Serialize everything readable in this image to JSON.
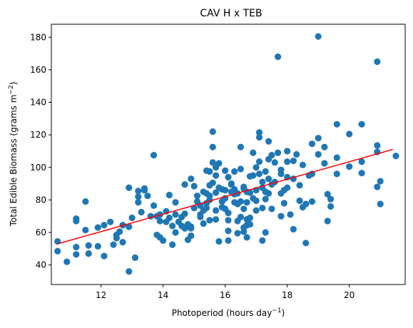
{
  "chart_data": {
    "type": "scatter",
    "title": "CAV H x TEB",
    "xlabel": "Photoperiod (hours day",
    "xlabel_sup": "−1",
    "xlabel_suffix": ")",
    "ylabel": "Total Edible Biomass (grams m",
    "ylabel_sup": "−2",
    "ylabel_suffix": ")",
    "xlim": [
      10.4,
      21.8
    ],
    "ylim": [
      28,
      188
    ],
    "xticks": [
      12,
      14,
      16,
      18,
      20
    ],
    "yticks": [
      40,
      60,
      80,
      100,
      120,
      140,
      160,
      180
    ],
    "grid": false,
    "colors": {
      "points": "#1f77b4",
      "fit_line": "#ff0000"
    },
    "fit_line": {
      "x": [
        10.6,
        21.4
      ],
      "y": [
        53,
        111
      ]
    },
    "points": [
      [
        10.6,
        54.5
      ],
      [
        10.6,
        48.5
      ],
      [
        10.9,
        42
      ],
      [
        11.2,
        68.5
      ],
      [
        11.2,
        67
      ],
      [
        11.2,
        51
      ],
      [
        11.2,
        46.5
      ],
      [
        11.5,
        79
      ],
      [
        11.5,
        61.5
      ],
      [
        11.6,
        52
      ],
      [
        11.6,
        47
      ],
      [
        11.9,
        63
      ],
      [
        11.9,
        51.5
      ],
      [
        12.1,
        64.5
      ],
      [
        12.1,
        45.5
      ],
      [
        12.3,
        66.5
      ],
      [
        12.4,
        52.5
      ],
      [
        12.5,
        58.5
      ],
      [
        12.5,
        56.5
      ],
      [
        12.6,
        60.5
      ],
      [
        12.7,
        64.5
      ],
      [
        12.7,
        54
      ],
      [
        12.9,
        87.5
      ],
      [
        12.9,
        63.5
      ],
      [
        12.9,
        36
      ],
      [
        13.0,
        69
      ],
      [
        13.1,
        44.5
      ],
      [
        13.2,
        85.5
      ],
      [
        13.2,
        82
      ],
      [
        13.2,
        78.5
      ],
      [
        13.3,
        72.5
      ],
      [
        13.4,
        87
      ],
      [
        13.4,
        86
      ],
      [
        13.5,
        82.5
      ],
      [
        13.6,
        70
      ],
      [
        13.7,
        76.5
      ],
      [
        13.7,
        107.5
      ],
      [
        13.8,
        70
      ],
      [
        13.8,
        58.5
      ],
      [
        13.9,
        71
      ],
      [
        13.9,
        67
      ],
      [
        13.9,
        57
      ],
      [
        14.0,
        55
      ],
      [
        14.1,
        66.5
      ],
      [
        14.1,
        73
      ],
      [
        14.2,
        83
      ],
      [
        14.2,
        69
      ],
      [
        14.3,
        64
      ],
      [
        14.3,
        52.5
      ],
      [
        14.4,
        71
      ],
      [
        14.4,
        78.5
      ],
      [
        14.4,
        60
      ],
      [
        14.5,
        66.5
      ],
      [
        14.6,
        69.5
      ],
      [
        14.6,
        64
      ],
      [
        14.7,
        62.5
      ],
      [
        14.7,
        71.5
      ],
      [
        14.7,
        89.5
      ],
      [
        14.8,
        65
      ],
      [
        14.8,
        55.5
      ],
      [
        14.9,
        63.5
      ],
      [
        14.9,
        62.5
      ],
      [
        14.9,
        58
      ],
      [
        14.9,
        93
      ],
      [
        15.0,
        75
      ],
      [
        15.0,
        88.5
      ],
      [
        15.1,
        82.5
      ],
      [
        15.1,
        79
      ],
      [
        15.2,
        76.5
      ],
      [
        15.2,
        71
      ],
      [
        15.2,
        69.5
      ],
      [
        15.3,
        65.5
      ],
      [
        15.3,
        73.5
      ],
      [
        15.3,
        85
      ],
      [
        15.4,
        98
      ],
      [
        15.4,
        84
      ],
      [
        15.4,
        78
      ],
      [
        15.4,
        75
      ],
      [
        15.5,
        97.5
      ],
      [
        15.5,
        89
      ],
      [
        15.5,
        80
      ],
      [
        15.5,
        67.5
      ],
      [
        15.5,
        82.5
      ],
      [
        15.6,
        122
      ],
      [
        15.6,
        112.5
      ],
      [
        15.6,
        103
      ],
      [
        15.6,
        90.5
      ],
      [
        15.7,
        95
      ],
      [
        15.7,
        100
      ],
      [
        15.7,
        84.5
      ],
      [
        15.7,
        68
      ],
      [
        15.7,
        73.5
      ],
      [
        15.8,
        102.5
      ],
      [
        15.8,
        87.5
      ],
      [
        15.8,
        54.5
      ],
      [
        15.9,
        86.5
      ],
      [
        15.9,
        79
      ],
      [
        15.9,
        75.5
      ],
      [
        16.0,
        98
      ],
      [
        16.0,
        86
      ],
      [
        16.0,
        81
      ],
      [
        16.0,
        74.5
      ],
      [
        16.1,
        94
      ],
      [
        16.1,
        72
      ],
      [
        16.1,
        67.5
      ],
      [
        16.1,
        61
      ],
      [
        16.1,
        55
      ],
      [
        16.2,
        89.5
      ],
      [
        16.2,
        90
      ],
      [
        16.2,
        85
      ],
      [
        16.3,
        86.5
      ],
      [
        16.3,
        83.5
      ],
      [
        16.3,
        78.5
      ],
      [
        16.3,
        97.5
      ],
      [
        16.4,
        84
      ],
      [
        16.4,
        77.5
      ],
      [
        16.4,
        67
      ],
      [
        16.4,
        59.5
      ],
      [
        16.5,
        112.5
      ],
      [
        16.5,
        99
      ],
      [
        16.5,
        79
      ],
      [
        16.5,
        69.5
      ],
      [
        16.6,
        88
      ],
      [
        16.6,
        87
      ],
      [
        16.6,
        74.5
      ],
      [
        16.6,
        63
      ],
      [
        16.6,
        60.5
      ],
      [
        16.7,
        85
      ],
      [
        16.7,
        78.5
      ],
      [
        16.7,
        68
      ],
      [
        16.7,
        64.5
      ],
      [
        16.7,
        57
      ],
      [
        16.8,
        94.5
      ],
      [
        16.8,
        84.5
      ],
      [
        16.8,
        69
      ],
      [
        16.8,
        65
      ],
      [
        16.9,
        109
      ],
      [
        16.9,
        95
      ],
      [
        16.9,
        81
      ],
      [
        17.0,
        100
      ],
      [
        17.0,
        86
      ],
      [
        17.0,
        79.5
      ],
      [
        17.0,
        73.5
      ],
      [
        17.1,
        121.5
      ],
      [
        17.1,
        118.5
      ],
      [
        17.1,
        103.5
      ],
      [
        17.1,
        96
      ],
      [
        17.2,
        91
      ],
      [
        17.2,
        87.5
      ],
      [
        17.2,
        75
      ],
      [
        17.2,
        55
      ],
      [
        17.3,
        97.5
      ],
      [
        17.3,
        85
      ],
      [
        17.3,
        80.5
      ],
      [
        17.3,
        60
      ],
      [
        17.4,
        116
      ],
      [
        17.4,
        105
      ],
      [
        17.4,
        93
      ],
      [
        17.4,
        84
      ],
      [
        17.5,
        107.5
      ],
      [
        17.5,
        89.5
      ],
      [
        17.5,
        74.5
      ],
      [
        17.6,
        103
      ],
      [
        17.6,
        91
      ],
      [
        17.7,
        168
      ],
      [
        17.7,
        109
      ],
      [
        17.8,
        98.5
      ],
      [
        17.8,
        96
      ],
      [
        17.8,
        84
      ],
      [
        17.8,
        70
      ],
      [
        17.9,
        86
      ],
      [
        17.9,
        78
      ],
      [
        18.0,
        110
      ],
      [
        18.0,
        103.5
      ],
      [
        18.0,
        94
      ],
      [
        18.0,
        87.5
      ],
      [
        18.1,
        71
      ],
      [
        18.2,
        104
      ],
      [
        18.2,
        93
      ],
      [
        18.2,
        62
      ],
      [
        18.3,
        108
      ],
      [
        18.4,
        89
      ],
      [
        18.4,
        79.5
      ],
      [
        18.5,
        101.5
      ],
      [
        18.5,
        75.5
      ],
      [
        18.6,
        77.5
      ],
      [
        18.6,
        53.5
      ],
      [
        18.7,
        95
      ],
      [
        18.8,
        114.5
      ],
      [
        18.8,
        96
      ],
      [
        18.8,
        79
      ],
      [
        19.0,
        180.5
      ],
      [
        19.0,
        118
      ],
      [
        19.0,
        108
      ],
      [
        19.2,
        112.5
      ],
      [
        19.2,
        102.5
      ],
      [
        19.3,
        83.5
      ],
      [
        19.3,
        67
      ],
      [
        19.4,
        76
      ],
      [
        19.4,
        80.5
      ],
      [
        19.6,
        126.5
      ],
      [
        19.6,
        106
      ],
      [
        19.6,
        96
      ],
      [
        20.0,
        120.5
      ],
      [
        20.0,
        100.5
      ],
      [
        20.4,
        126.5
      ],
      [
        20.4,
        103.5
      ],
      [
        20.4,
        96.5
      ],
      [
        20.9,
        165
      ],
      [
        20.9,
        113.5
      ],
      [
        20.9,
        109.5
      ],
      [
        20.9,
        88
      ],
      [
        21.0,
        91.5
      ],
      [
        21.0,
        77.5
      ],
      [
        21.5,
        107
      ]
    ]
  }
}
